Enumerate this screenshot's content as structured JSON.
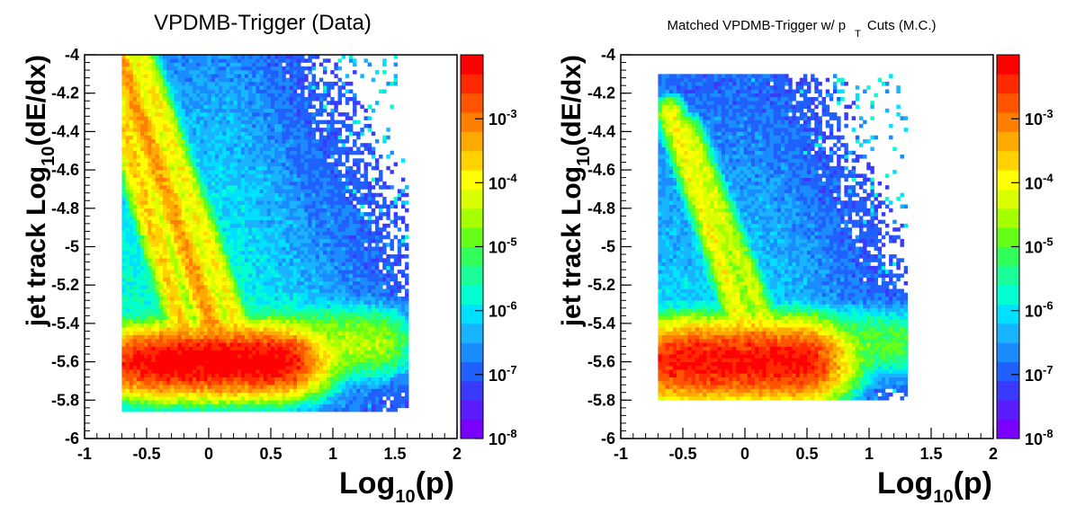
{
  "chart_data": [
    {
      "type": "heatmap",
      "title": "VPDMB-Trigger (Data)",
      "xlabel_main": "Log",
      "xlabel_sub": "10",
      "xlabel_rest": "(p)",
      "ylabel_main": "jet track Log",
      "ylabel_sub": "10",
      "ylabel_rest": "(dE/dx)",
      "xlim": [
        -1,
        2
      ],
      "ylim": [
        -6,
        -4
      ],
      "x_ticks": [
        "-1",
        "-0.5",
        "0",
        "0.5",
        "1",
        "1.5",
        "2"
      ],
      "y_ticks": [
        "-6",
        "-5.8",
        "-5.6",
        "-5.4",
        "-5.2",
        "-5",
        "-4.8",
        "-4.6",
        "-4.4",
        "-4.2",
        "-4"
      ],
      "z_scale": "log",
      "zlim": [
        1e-08,
        0.01
      ],
      "colorbar_labels": [
        {
          "base": "10",
          "exp": "-8"
        },
        {
          "base": "10",
          "exp": "-7"
        },
        {
          "base": "10",
          "exp": "-6"
        },
        {
          "base": "10",
          "exp": "-5"
        },
        {
          "base": "10",
          "exp": "-4"
        },
        {
          "base": "10",
          "exp": "-3"
        }
      ],
      "components": [
        {
          "kind": "blob",
          "x0": -0.3,
          "x1": 0.5,
          "y": -5.6,
          "sy": 0.06,
          "logpeak": -2.0
        },
        {
          "kind": "blob",
          "x0": 0.5,
          "x1": 1.3,
          "y": -5.5,
          "sy": 0.07,
          "logpeak": -4.5
        },
        {
          "kind": "band",
          "xa": -0.7,
          "ya": -4.05,
          "xb": 0.05,
          "yb": -5.45,
          "logpeak": -3.2
        },
        {
          "kind": "band",
          "xa": -0.7,
          "ya": -4.35,
          "xb": -0.2,
          "yb": -5.45,
          "logpeak": -3.6
        },
        {
          "kind": "band",
          "xa": -0.55,
          "ya": -4.0,
          "xb": 0.25,
          "yb": -5.45,
          "logpeak": -3.9
        }
      ],
      "bg_log": -5.6,
      "bg_extent": {
        "x": [
          -0.7,
          1.6
        ],
        "y": [
          -5.85,
          -4.0
        ]
      }
    },
    {
      "type": "heatmap",
      "title_main": "Matched VPDMB-Trigger w/ p",
      "title_sub": "T",
      "title_rest": "Cuts (M.C.)",
      "xlabel_main": "Log",
      "xlabel_sub": "10",
      "xlabel_rest": "(p)",
      "ylabel_main": "jet track Log",
      "ylabel_sub": "10",
      "ylabel_rest": "(dE/dx)",
      "xlim": [
        -1,
        2
      ],
      "ylim": [
        -6,
        -4
      ],
      "x_ticks": [
        "-1",
        "-0.5",
        "0",
        "0.5",
        "1",
        "1.5",
        "2"
      ],
      "y_ticks": [
        "-6",
        "-5.8",
        "-5.6",
        "-5.4",
        "-5.2",
        "-5",
        "-4.8",
        "-4.6",
        "-4.4",
        "-4.2",
        "-4"
      ],
      "z_scale": "log",
      "zlim": [
        1e-08,
        0.01
      ],
      "colorbar_labels": [
        {
          "base": "10",
          "exp": "-8"
        },
        {
          "base": "10",
          "exp": "-7"
        },
        {
          "base": "10",
          "exp": "-6"
        },
        {
          "base": "10",
          "exp": "-5"
        },
        {
          "base": "10",
          "exp": "-4"
        },
        {
          "base": "10",
          "exp": "-3"
        }
      ],
      "components": [
        {
          "kind": "blob",
          "x0": -0.4,
          "x1": 0.4,
          "y": -5.6,
          "sy": 0.07,
          "logpeak": -2.2
        },
        {
          "kind": "blob",
          "x0": 0.4,
          "x1": 1.3,
          "y": -5.5,
          "sy": 0.07,
          "logpeak": -5.0
        },
        {
          "kind": "band",
          "xa": -0.6,
          "ya": -4.3,
          "xb": 0.0,
          "yb": -5.45,
          "logpeak": -4.0
        },
        {
          "kind": "band",
          "xa": -0.45,
          "ya": -4.4,
          "xb": 0.2,
          "yb": -5.45,
          "logpeak": -4.3
        }
      ],
      "bg_log": -6.0,
      "bg_extent": {
        "x": [
          -0.7,
          1.3
        ],
        "y": [
          -5.8,
          -4.1
        ]
      }
    }
  ]
}
